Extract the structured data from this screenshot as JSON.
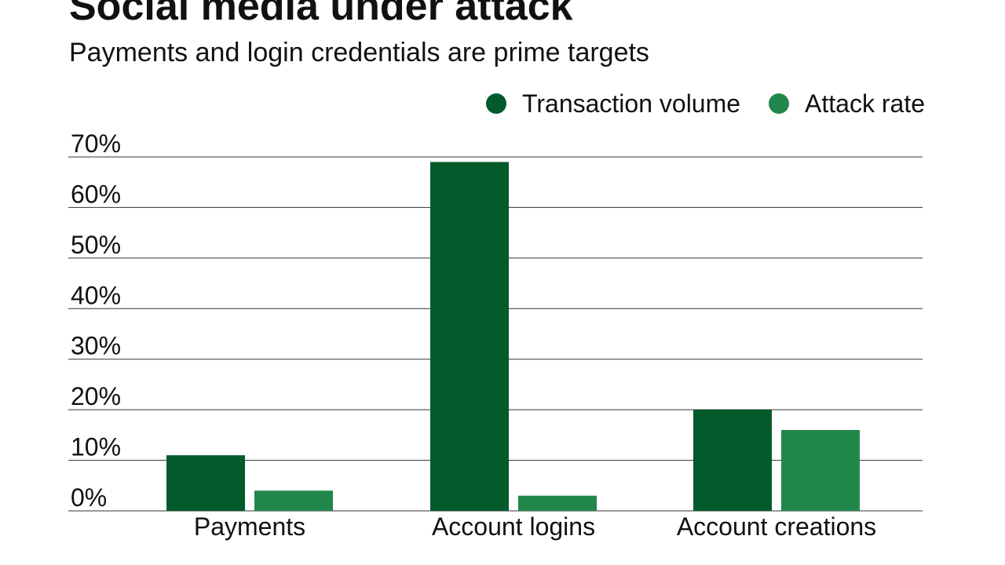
{
  "title": "Social media under attack",
  "subtitle": "Payments and login credentials are prime targets",
  "colors": {
    "transaction_volume": "#035a2b",
    "attack_rate": "#21874a",
    "gridline": "#333333",
    "text": "#111111"
  },
  "chart_data": {
    "type": "bar",
    "title": "Social media under attack",
    "subtitle": "Payments and login credentials are prime targets",
    "categories": [
      "Payments",
      "Account logins",
      "Account creations"
    ],
    "series": [
      {
        "name": "Transaction volume",
        "values": [
          11,
          69,
          20
        ]
      },
      {
        "name": "Attack rate",
        "values": [
          4,
          3,
          16
        ]
      }
    ],
    "xlabel": "",
    "ylabel": "",
    "ylim": [
      0,
      70
    ],
    "yticks": [
      0,
      10,
      20,
      30,
      40,
      50,
      60,
      70
    ],
    "ytick_labels": [
      "0%",
      "10%",
      "20%",
      "30%",
      "40%",
      "50%",
      "60%",
      "70%"
    ],
    "grid": true,
    "legend_position": "top-right"
  }
}
